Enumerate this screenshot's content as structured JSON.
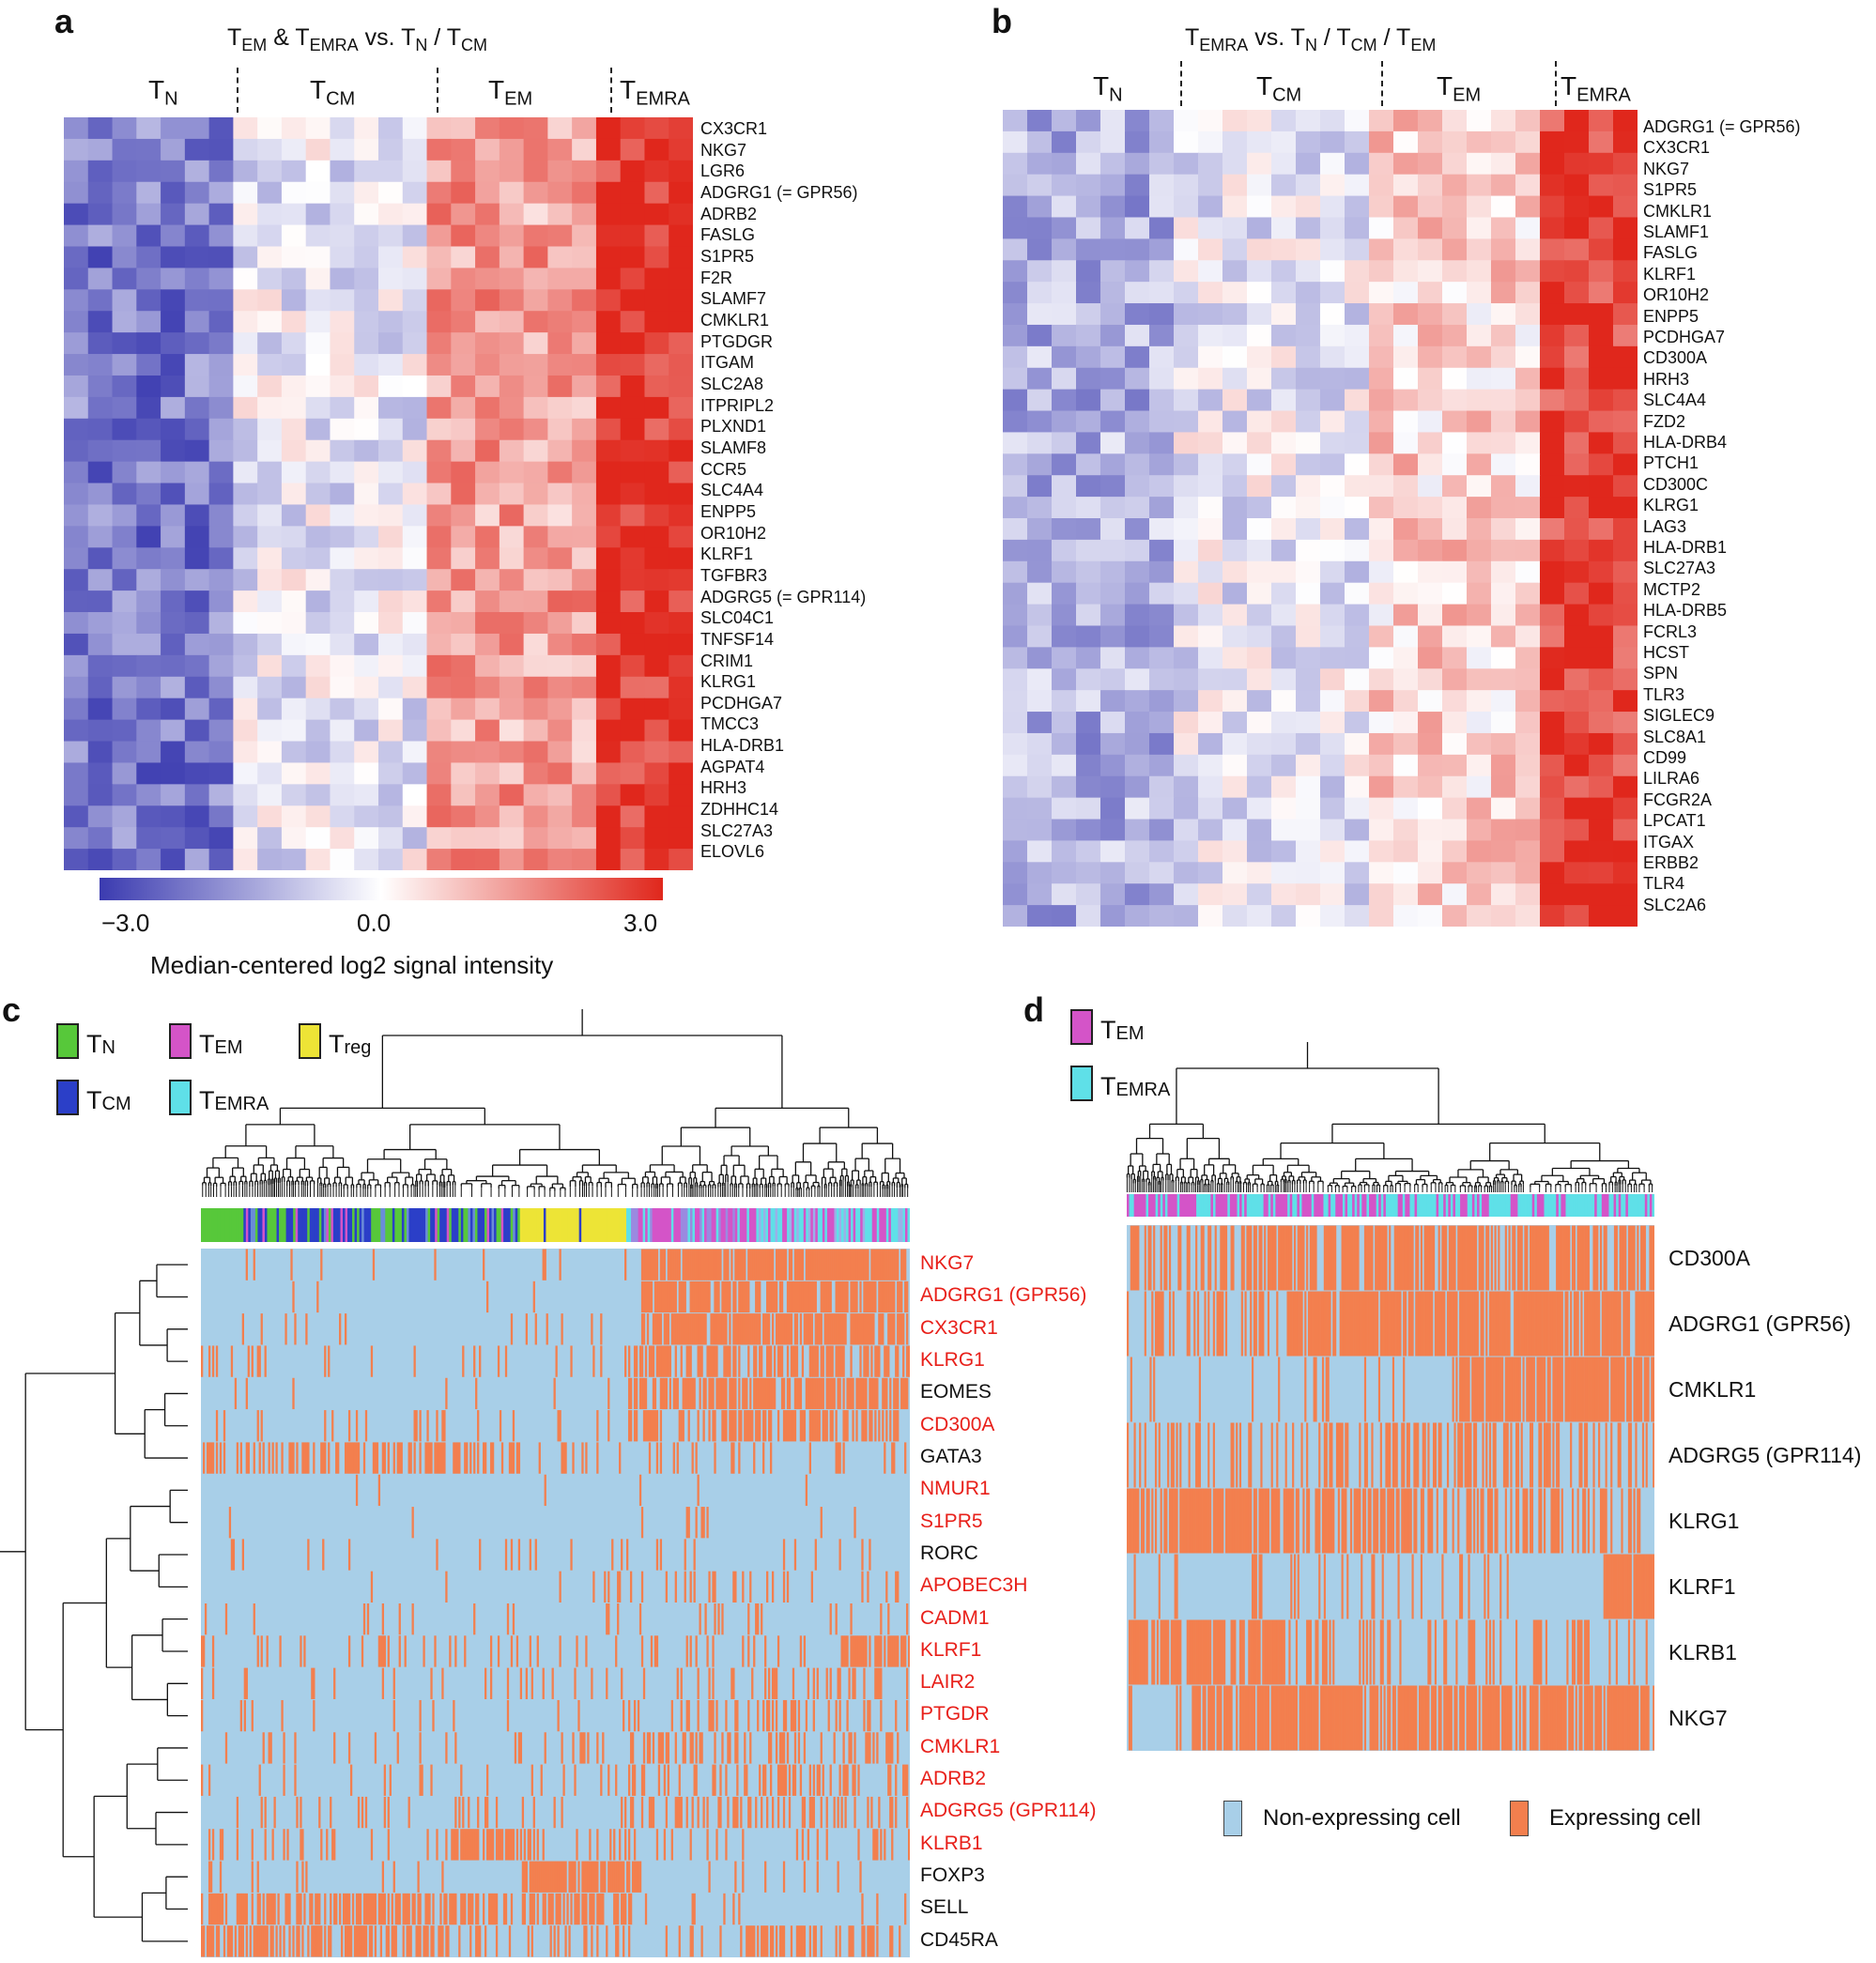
{
  "chart_data": [
    {
      "panel": "a",
      "type": "heatmap",
      "title_parts": [
        "T",
        "EM",
        " & T",
        "EMRA",
        " vs. T",
        "N",
        " / T",
        "CM"
      ],
      "groups": [
        {
          "base": "T",
          "sub": "N",
          "columns": 7
        },
        {
          "base": "T",
          "sub": "CM",
          "columns": 8
        },
        {
          "base": "T",
          "sub": "EM",
          "columns": 7
        },
        {
          "base": "T",
          "sub": "EMRA",
          "columns": 4
        }
      ],
      "genes": [
        "CX3CR1",
        "NKG7",
        "LGR6",
        "ADGRG1 (= GPR56)",
        "ADRB2",
        "FASLG",
        "S1PR5",
        "F2R",
        "SLAMF7",
        "CMKLR1",
        "PTGDGR",
        "ITGAM",
        "SLC2A8",
        "ITPRIPL2",
        "PLXND1",
        "SLAMF8",
        "CCR5",
        "SLC4A4",
        "ENPP5",
        "OR10H2",
        "KLRF1",
        "TGFBR3",
        "ADGRG5 (= GPR114)",
        "SLC04C1",
        "TNFSF14",
        "CRIM1",
        "KLRG1",
        "PCDHGA7",
        "TMCC3",
        "HLA-DRB1",
        "AGPAT4",
        "HRH3",
        "ZDHHC14",
        "SLC27A3",
        "ELOVL6"
      ],
      "colorscale": {
        "low": -3.0,
        "mid": 0.0,
        "high": 3.0,
        "low_color": "#3b3bb0",
        "mid_color": "#ffffff",
        "high_color": "#e0271c"
      },
      "colorbar_ticks": [
        "−3.0",
        "0.0",
        "3.0"
      ],
      "colorbar_label": "Median-centered log2 signal intensity"
    },
    {
      "panel": "b",
      "type": "heatmap",
      "title_parts": [
        "T",
        "EMRA",
        " vs. T",
        "N",
        " / T",
        "CM",
        " / T",
        "EM"
      ],
      "groups": [
        {
          "base": "T",
          "sub": "N",
          "columns": 7
        },
        {
          "base": "T",
          "sub": "CM",
          "columns": 8
        },
        {
          "base": "T",
          "sub": "EM",
          "columns": 7
        },
        {
          "base": "T",
          "sub": "EMRA",
          "columns": 4
        }
      ],
      "genes": [
        "ADGRG1 (= GPR56)",
        "CX3CR1",
        "NKG7",
        "S1PR5",
        "CMKLR1",
        "SLAMF1",
        "FASLG",
        "KLRF1",
        "OR10H2",
        "ENPP5",
        "PCDHGA7",
        "CD300A",
        "HRH3",
        "SLC4A4",
        "FZD2",
        "HLA-DRB4",
        "PTCH1",
        "CD300C",
        "KLRG1",
        "LAG3",
        "HLA-DRB1",
        "SLC27A3",
        "MCTP2",
        "HLA-DRB5",
        "FCRL3",
        "HCST",
        "SPN",
        "TLR3",
        "SIGLEC9",
        "SLC8A1",
        "CD99",
        "LILRA6",
        "FCGR2A",
        "LPCAT1",
        "ITGAX",
        "ERBB2",
        "TLR4",
        "SLC2A6"
      ]
    },
    {
      "panel": "c",
      "type": "heatmap",
      "legend": [
        {
          "base": "T",
          "sub": "N",
          "color": "#57c83a"
        },
        {
          "base": "T",
          "sub": "EM",
          "color": "#d454c8"
        },
        {
          "base": "T",
          "sub": "reg",
          "color": "#ede436"
        },
        {
          "base": "T",
          "sub": "CM",
          "color": "#2b3fc8"
        },
        {
          "base": "T",
          "sub": "EMRA",
          "color": "#5fe0e8"
        }
      ],
      "genes": [
        {
          "name": "NKG7",
          "color": "#e8201a"
        },
        {
          "name": "ADGRG1 (GPR56)",
          "color": "#e8201a"
        },
        {
          "name": "CX3CR1",
          "color": "#e8201a"
        },
        {
          "name": "KLRG1",
          "color": "#e8201a"
        },
        {
          "name": "EOMES",
          "color": "#111111"
        },
        {
          "name": "CD300A",
          "color": "#e8201a"
        },
        {
          "name": "GATA3",
          "color": "#111111"
        },
        {
          "name": "NMUR1",
          "color": "#e8201a"
        },
        {
          "name": "S1PR5",
          "color": "#e8201a"
        },
        {
          "name": "RORC",
          "color": "#111111"
        },
        {
          "name": "APOBEC3H",
          "color": "#e8201a"
        },
        {
          "name": "CADM1",
          "color": "#e8201a"
        },
        {
          "name": "KLRF1",
          "color": "#e8201a"
        },
        {
          "name": "LAIR2",
          "color": "#e8201a"
        },
        {
          "name": "PTGDR",
          "color": "#e8201a"
        },
        {
          "name": "CMKLR1",
          "color": "#e8201a"
        },
        {
          "name": "ADRB2",
          "color": "#e8201a"
        },
        {
          "name": "ADGRG5 (GPR114)",
          "color": "#e8201a"
        },
        {
          "name": "KLRB1",
          "color": "#e8201a"
        },
        {
          "name": "FOXP3",
          "color": "#111111"
        },
        {
          "name": "SELL",
          "color": "#111111"
        },
        {
          "name": "CD45RA",
          "color": "#111111"
        }
      ],
      "cell_group_order": [
        "CM/N",
        "reg",
        "EM/EMRA"
      ]
    },
    {
      "panel": "d",
      "type": "heatmap",
      "legend": [
        {
          "base": "T",
          "sub": "EM",
          "color": "#d454c8"
        },
        {
          "base": "T",
          "sub": "EMRA",
          "color": "#5fe0e8"
        }
      ],
      "genes": [
        "CD300A",
        "ADGRG1 (GPR56)",
        "CMKLR1",
        "ADGRG5 (GPR114)",
        "KLRG1",
        "KLRF1",
        "KLRB1",
        "NKG7"
      ],
      "expression_legend": [
        {
          "label": "Non-expressing cell",
          "color": "#a8cfe8"
        },
        {
          "label": "Expressing cell",
          "color": "#f37f4e"
        }
      ]
    }
  ]
}
